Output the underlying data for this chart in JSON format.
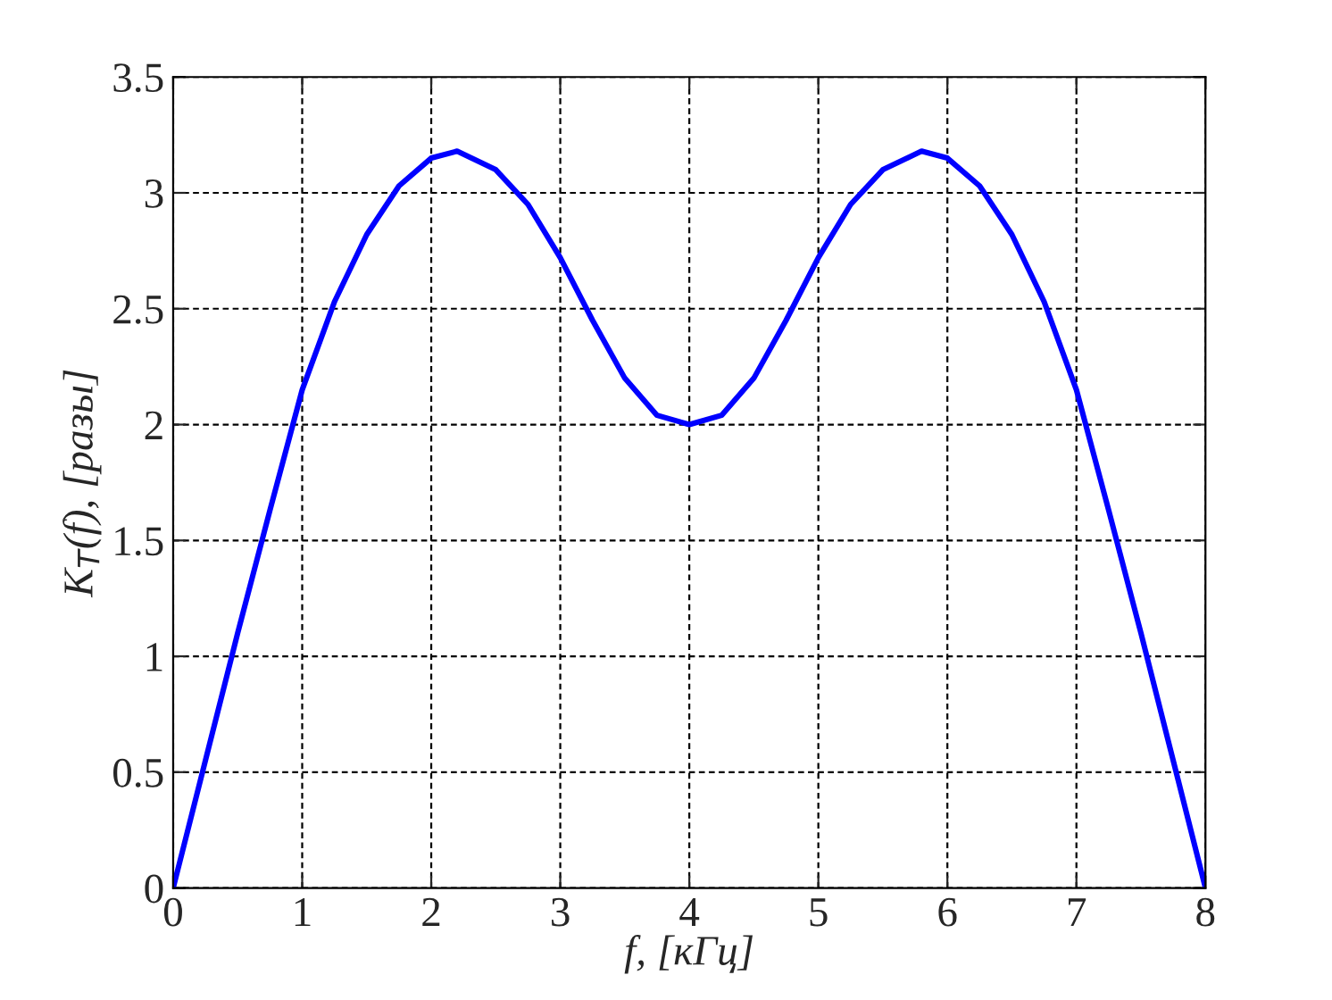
{
  "chart_data": {
    "type": "line",
    "xlabel": "f, [кГц]",
    "ylabel": "K$_{T}$(f), [разы]",
    "series": [
      {
        "color": "#0000ff",
        "x": [
          0,
          0.25,
          0.5,
          0.75,
          1.0,
          1.25,
          1.5,
          1.75,
          2.0,
          2.2,
          2.5,
          2.75,
          3.0,
          3.25,
          3.5,
          3.75,
          4.0,
          4.25,
          4.5,
          4.75,
          5.0,
          5.25,
          5.5,
          5.8,
          6.0,
          6.25,
          6.5,
          6.75,
          7.0,
          7.25,
          7.5,
          7.75,
          8.0
        ],
        "values": [
          0,
          0.55,
          1.1,
          1.63,
          2.15,
          2.53,
          2.82,
          3.03,
          3.15,
          3.18,
          3.1,
          2.95,
          2.72,
          2.45,
          2.2,
          2.04,
          2.0,
          2.04,
          2.2,
          2.45,
          2.72,
          2.95,
          3.1,
          3.18,
          3.15,
          3.03,
          2.82,
          2.53,
          2.15,
          1.63,
          1.1,
          0.55,
          0
        ]
      }
    ],
    "xlim": [
      0,
      8
    ],
    "xticks": [
      0,
      1,
      2,
      3,
      4,
      5,
      6,
      7,
      8
    ],
    "ylim": [
      0,
      3.5
    ],
    "yticks": [
      0,
      0.5,
      1,
      1.5,
      2,
      2.5,
      3,
      3.5
    ],
    "grid": true,
    "marker": "none",
    "line_style": "solid",
    "legend": false
  }
}
